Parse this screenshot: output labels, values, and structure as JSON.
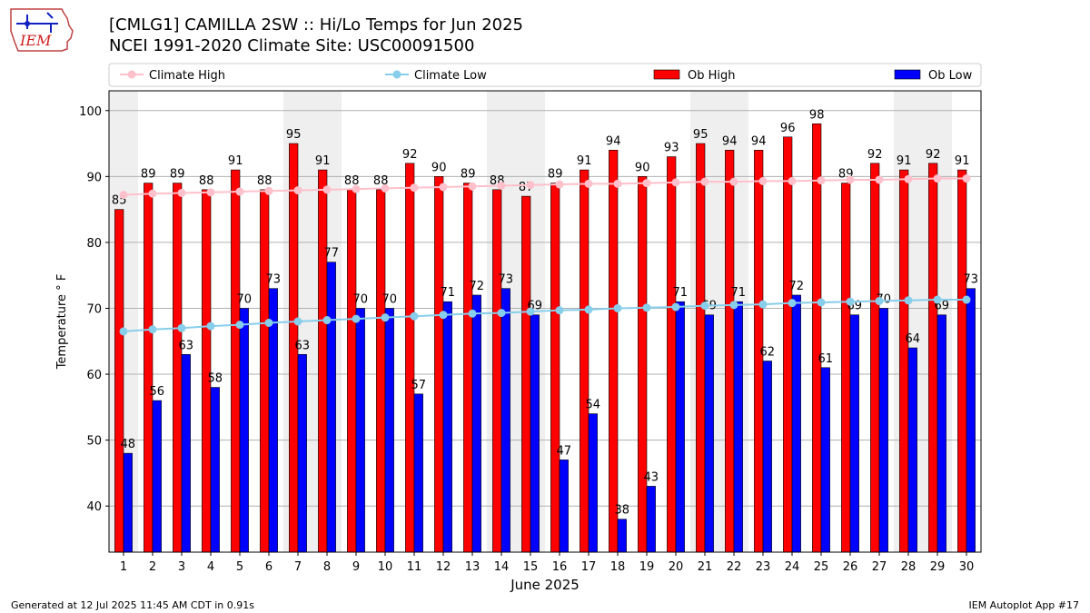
{
  "header": {
    "title": "[CMLG1] CAMILLA 2SW :: Hi/Lo Temps for Jun 2025",
    "subtitle": "NCEI 1991-2020 Climate Site: USC00091500",
    "logo_text": "IEM"
  },
  "footer": {
    "generated": "Generated at 12 Jul 2025 11:45 AM CDT in 0.91s",
    "app": "IEM Autoplot App #17"
  },
  "chart_data": {
    "type": "bar",
    "xlabel": "June 2025",
    "ylabel": "Temperature ° F",
    "ylim": [
      33,
      103
    ],
    "yticks": [
      40,
      50,
      60,
      70,
      80,
      90,
      100
    ],
    "grid": true,
    "legend_position": "top",
    "weekend_shading": [
      1,
      7,
      8,
      14,
      15,
      21,
      22,
      28,
      29
    ],
    "categories": [
      "1",
      "2",
      "3",
      "4",
      "5",
      "6",
      "7",
      "8",
      "9",
      "10",
      "11",
      "12",
      "13",
      "14",
      "15",
      "16",
      "17",
      "18",
      "19",
      "20",
      "21",
      "22",
      "23",
      "24",
      "25",
      "26",
      "27",
      "28",
      "29",
      "30"
    ],
    "series": [
      {
        "name": "Ob High",
        "type": "bar",
        "color": "#ff0000",
        "values": [
          85,
          89,
          89,
          88,
          91,
          88,
          95,
          91,
          88,
          88,
          92,
          90,
          89,
          88,
          87,
          89,
          91,
          94,
          90,
          93,
          95,
          94,
          94,
          96,
          98,
          89,
          92,
          91,
          92,
          91
        ]
      },
      {
        "name": "Ob Low",
        "type": "bar",
        "color": "#0000ff",
        "values": [
          48,
          56,
          63,
          58,
          70,
          73,
          63,
          77,
          70,
          70,
          57,
          71,
          72,
          73,
          69,
          47,
          54,
          38,
          43,
          71,
          69,
          71,
          62,
          72,
          61,
          69,
          70,
          64,
          69,
          73
        ]
      },
      {
        "name": "Climate High",
        "type": "line",
        "color": "#ffc0cb",
        "values": [
          87.2,
          87.4,
          87.5,
          87.6,
          87.7,
          87.8,
          87.9,
          88.0,
          88.1,
          88.2,
          88.3,
          88.4,
          88.5,
          88.6,
          88.7,
          88.8,
          88.9,
          88.9,
          89.0,
          89.1,
          89.2,
          89.2,
          89.3,
          89.3,
          89.4,
          89.5,
          89.5,
          89.6,
          89.7,
          89.7
        ]
      },
      {
        "name": "Climate Low",
        "type": "line",
        "color": "#87ceeb",
        "values": [
          66.5,
          66.8,
          67.0,
          67.3,
          67.5,
          67.8,
          68.0,
          68.2,
          68.4,
          68.6,
          68.8,
          69.0,
          69.2,
          69.3,
          69.5,
          69.7,
          69.8,
          70.0,
          70.1,
          70.2,
          70.4,
          70.5,
          70.6,
          70.8,
          70.9,
          71.0,
          71.1,
          71.2,
          71.3,
          71.3
        ]
      }
    ]
  }
}
